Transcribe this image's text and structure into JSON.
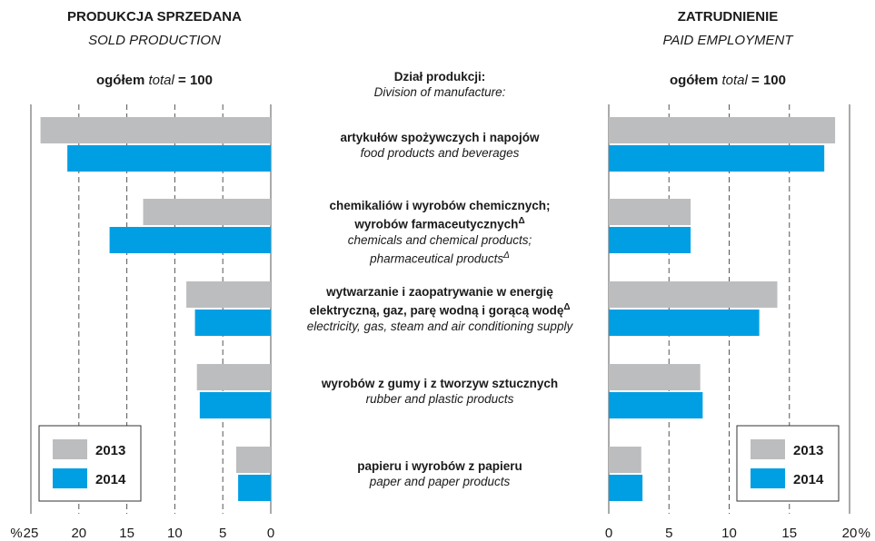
{
  "left_panel": {
    "title_pl": "PRODUKCJA SPRZEDANA",
    "title_en": "SOLD PRODUCTION",
    "header_pl": "ogółem",
    "header_en": "total",
    "header_eq": "= 100"
  },
  "right_panel": {
    "title_pl": "ZATRUDNIENIE",
    "title_en": "PAID EMPLOYMENT",
    "header_pl": "ogółem",
    "header_en": "total",
    "header_eq": "= 100"
  },
  "center_header": {
    "pl": "Dział produkcji:",
    "en": "Division of manufacture:"
  },
  "categories": [
    {
      "pl": [
        "artykułów spożywczych i napojów"
      ],
      "en": [
        "food products and beverages"
      ]
    },
    {
      "pl": [
        "chemikaliów i wyrobów chemicznych;",
        "wyrobów farmaceutycznych"
      ],
      "pl_sup": "Δ",
      "en": [
        "chemicals and chemical products;",
        "pharmaceutical products"
      ],
      "en_sup": "Δ"
    },
    {
      "pl": [
        "wytwarzanie i zaopatrywanie w energię",
        "elektryczną, gaz, parę wodną i gorącą wodę"
      ],
      "pl_sup": "Δ",
      "en": [
        "electricity, gas, steam and air conditioning supply"
      ]
    },
    {
      "pl": [
        "wyrobów z gumy i z tworzyw sztucznych"
      ],
      "en": [
        "rubber and plastic products"
      ]
    },
    {
      "pl": [
        "papieru i wyrobów z papieru"
      ],
      "en": [
        "paper and paper products"
      ]
    }
  ],
  "legend": [
    "2013",
    "2014"
  ],
  "colors": {
    "y2013": "#bcbdbf",
    "y2014": "#009fe3",
    "grid": "#555555"
  },
  "chart_data": [
    {
      "type": "bar",
      "orientation": "horizontal",
      "direction": "right-to-left",
      "title": "PRODUKCJA SPRZEDANA / SOLD PRODUCTION",
      "xlim": [
        0,
        25
      ],
      "xticks": [
        "0",
        "5",
        "10",
        "15",
        "20",
        "25"
      ],
      "unit_label": "%",
      "grid": true,
      "legend_position": "bottom-left",
      "series": [
        {
          "name": "2013",
          "values": [
            24.0,
            13.3,
            8.8,
            7.7,
            3.6
          ]
        },
        {
          "name": "2014",
          "values": [
            21.2,
            16.8,
            7.9,
            7.4,
            3.4
          ]
        }
      ]
    },
    {
      "type": "bar",
      "orientation": "horizontal",
      "direction": "left-to-right",
      "title": "ZATRUDNIENIE / PAID EMPLOYMENT",
      "xlim": [
        0,
        20
      ],
      "xticks": [
        "0",
        "5",
        "10",
        "15",
        "20"
      ],
      "unit_label": "%",
      "grid": true,
      "legend_position": "bottom-right",
      "series": [
        {
          "name": "2013",
          "values": [
            18.8,
            6.8,
            14.0,
            7.6,
            2.7
          ]
        },
        {
          "name": "2014",
          "values": [
            17.9,
            6.8,
            12.5,
            7.8,
            2.8
          ]
        }
      ]
    }
  ]
}
